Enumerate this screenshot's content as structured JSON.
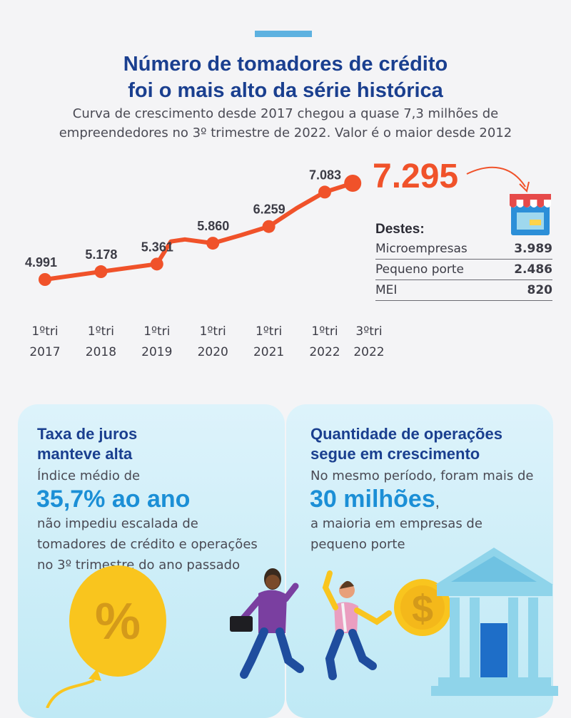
{
  "title_line1": "Número de tomadores de crédito",
  "title_line2": "foi o mais alto da série histórica",
  "subtitle_line1": "Curva de crescimento desde 2017 chegou a quase 7,3 milhões de",
  "subtitle_line2": "empreendedores no 3º trimestre de 2022. Valor é o maior desde 2012",
  "chart_data": {
    "type": "line",
    "title": "Número de tomadores de crédito foi o mais alto da série histórica",
    "x_labels": [
      {
        "quarter": "1ºtri",
        "year": "2017"
      },
      {
        "quarter": "1ºtri",
        "year": "2018"
      },
      {
        "quarter": "1ºtri",
        "year": "2019"
      },
      {
        "quarter": "1ºtri",
        "year": "2020"
      },
      {
        "quarter": "1ºtri",
        "year": "2021"
      },
      {
        "quarter": "1ºtri",
        "year": "2022"
      },
      {
        "quarter": "3ºtri",
        "year": "2022"
      }
    ],
    "x": [
      0,
      1,
      2,
      2.25,
      2.5,
      3,
      3.5,
      4,
      4.5,
      5,
      5.5
    ],
    "y": [
      4991,
      5178,
      5361,
      5900,
      5950,
      5860,
      6050,
      6259,
      6700,
      7083,
      7295
    ],
    "labeled_points": [
      {
        "x": 0,
        "y": 4991,
        "label": "4.991"
      },
      {
        "x": 1,
        "y": 5178,
        "label": "5.178"
      },
      {
        "x": 2,
        "y": 5361,
        "label": "5.361"
      },
      {
        "x": 3,
        "y": 5860,
        "label": "5.860"
      },
      {
        "x": 4,
        "y": 6259,
        "label": "6.259"
      },
      {
        "x": 5,
        "y": 7083,
        "label": "7.083"
      },
      {
        "x": 5.5,
        "y": 7295,
        "label": "7.295"
      }
    ],
    "line_color": "#f0522a",
    "grid": false
  },
  "highlight_value": "7.295",
  "breakdown": {
    "heading": "Destes:",
    "rows": [
      {
        "label": "Microempresas",
        "value": "3.989"
      },
      {
        "label": "Pequeno porte",
        "value": "2.486"
      },
      {
        "label": "MEI",
        "value": "820"
      }
    ]
  },
  "card_left": {
    "title_line1": "Taxa de juros",
    "title_line2": "manteve alta",
    "intro": "Índice médio de",
    "big": "35,7% ao ano",
    "text_line1": "não impediu escalada de",
    "text_line2": "tomadores de crédito e operações",
    "text_line3": "no 3º trimestre do ano passado"
  },
  "card_right": {
    "title_line1": "Quantidade de operações",
    "title_line2": "segue em crescimento",
    "intro": "No mesmo período, foram mais de",
    "big": "30 milhões",
    "big_suffix": ",",
    "text_line1": "a maioria em empresas de",
    "text_line2": "pequeno porte"
  },
  "colors": {
    "title": "#1a3f8f",
    "accent_orange": "#f0522a",
    "accent_blue": "#1b8fd6",
    "card_bg": "#cdeef8"
  },
  "icons": {
    "store": "store-icon",
    "balloon": "percent-balloon-icon",
    "coin": "dollar-coin-icon",
    "bank": "bank-building-icon",
    "arrow": "curved-arrow-icon"
  }
}
